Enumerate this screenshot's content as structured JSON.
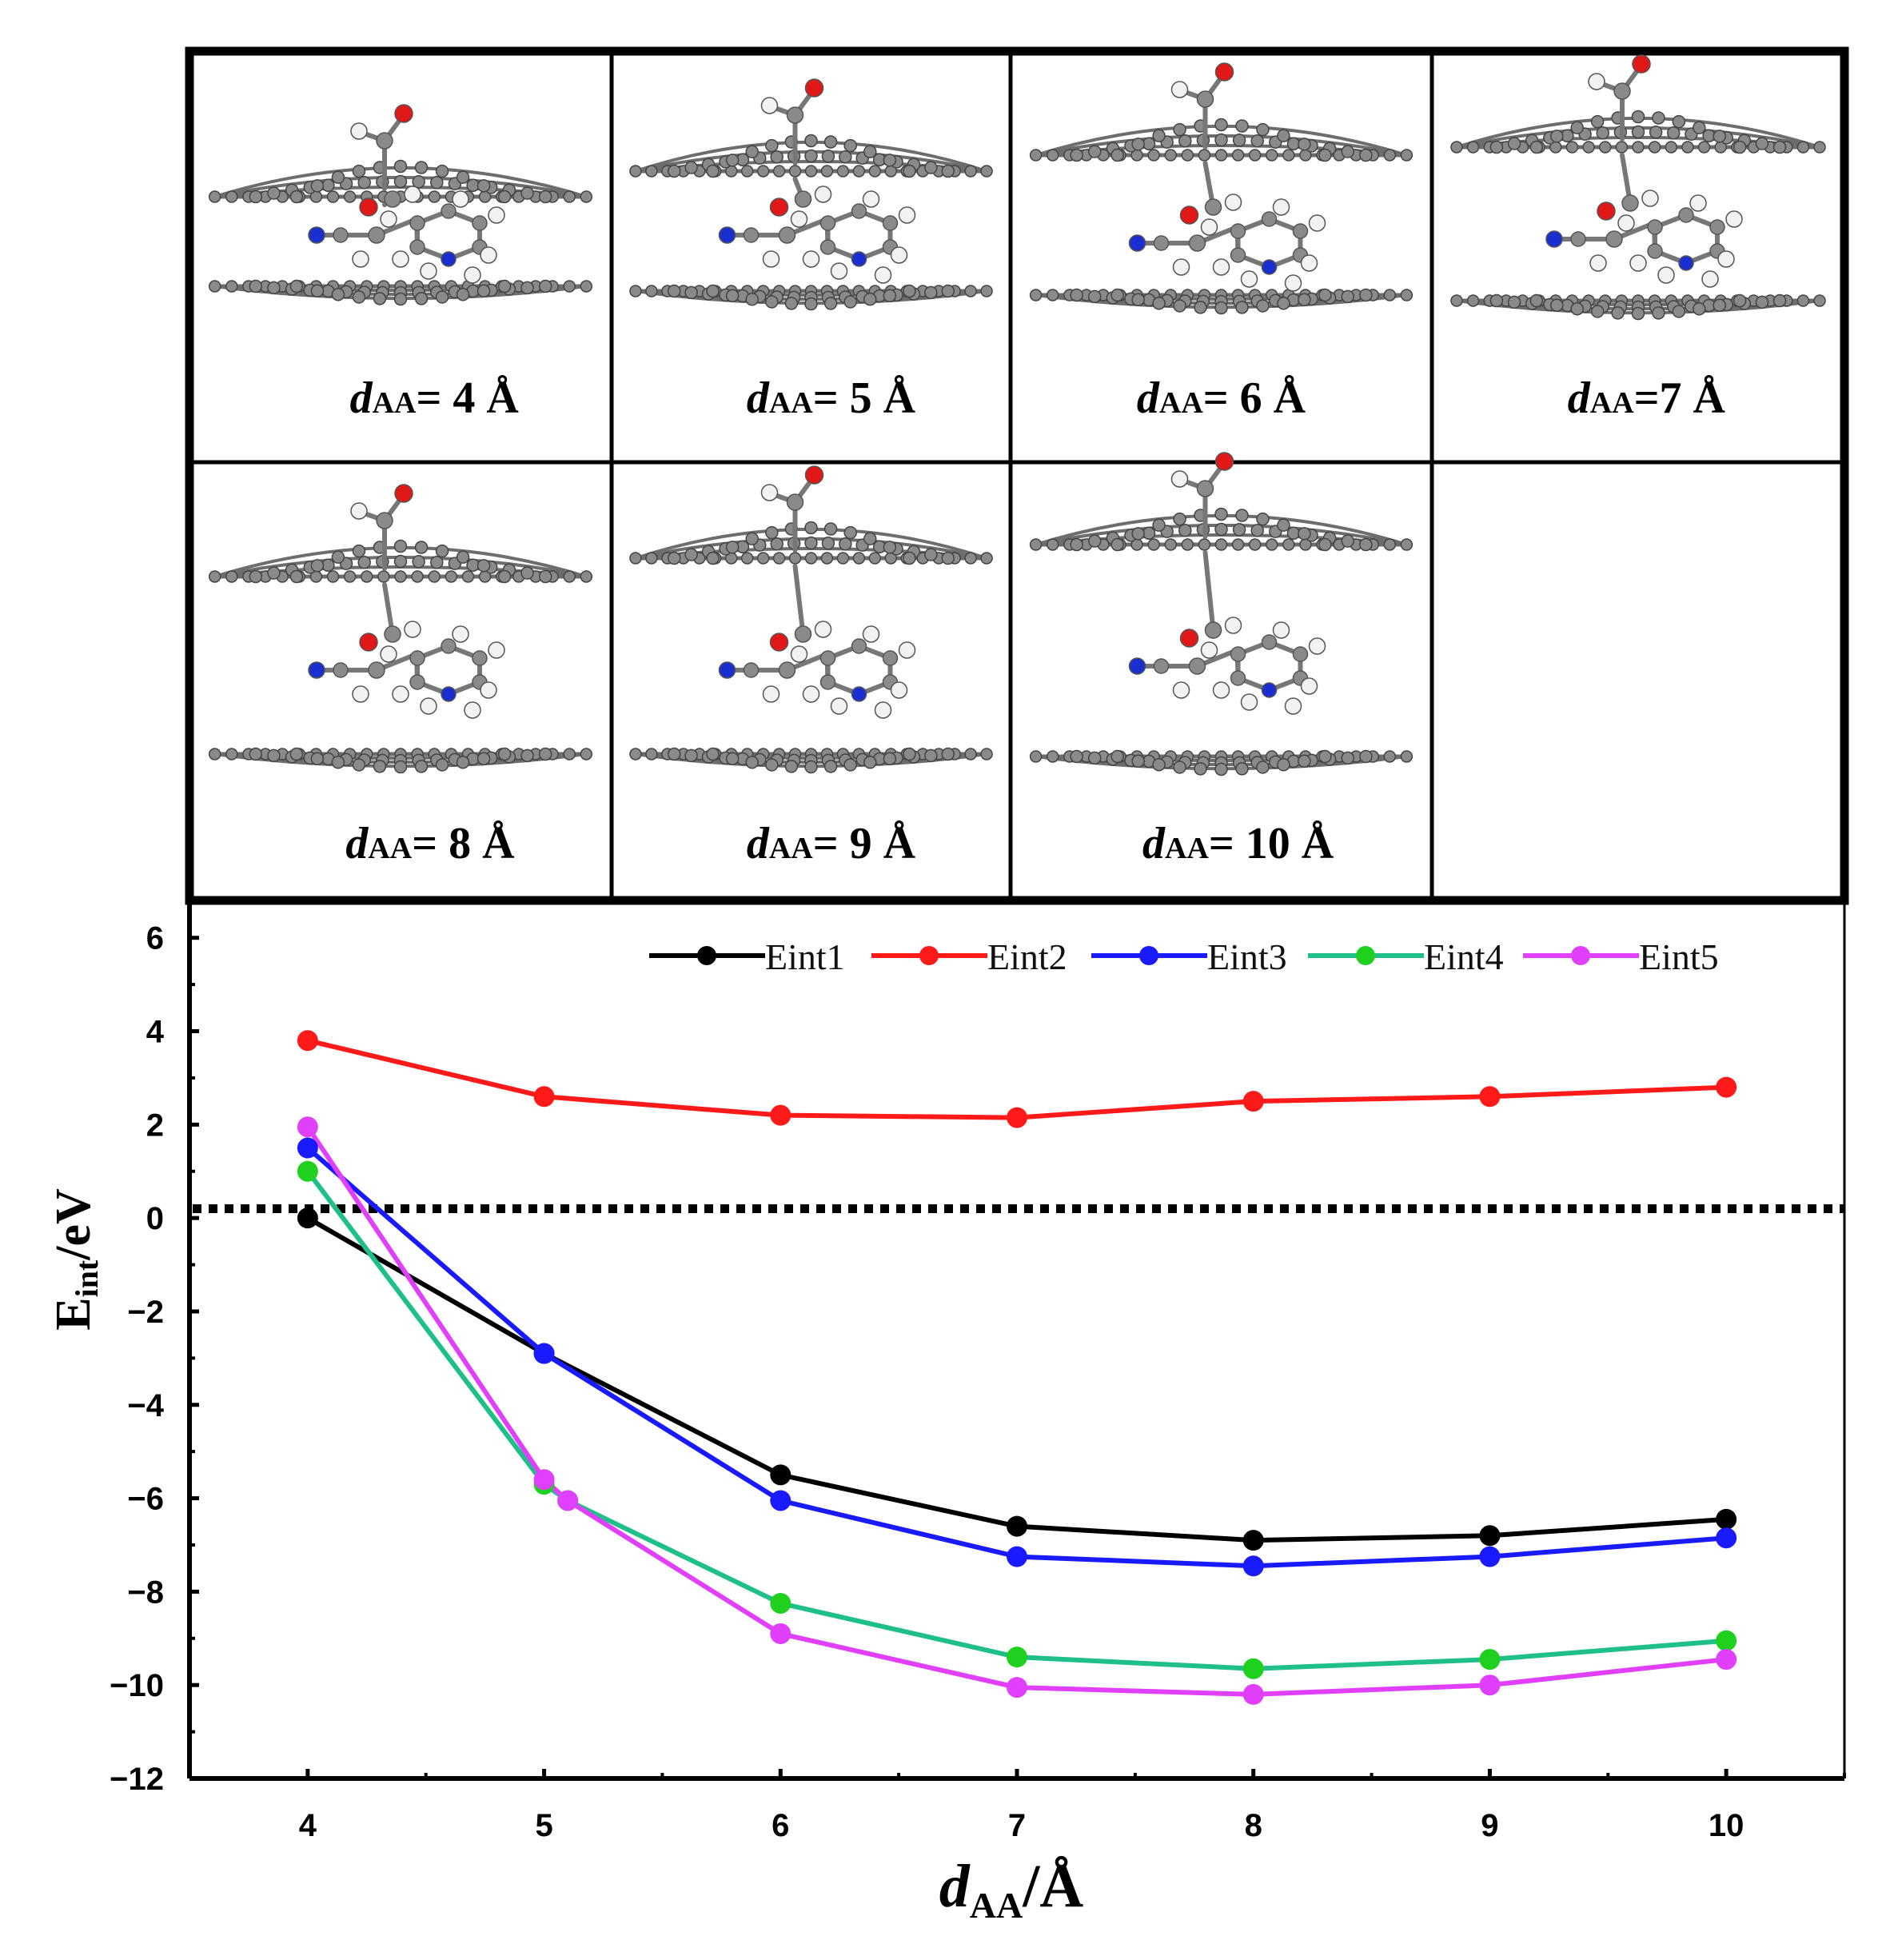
{
  "panels": [
    {
      "prefix": "d",
      "sub": "AA",
      "text": "= 4 Å"
    },
    {
      "prefix": "d",
      "sub": "AA",
      "text": "= 5 Å"
    },
    {
      "prefix": "d",
      "sub": "AA",
      "text": "= 6 Å"
    },
    {
      "prefix": "d",
      "sub": "AA",
      "text": "=7 Å"
    },
    {
      "prefix": "d",
      "sub": "AA",
      "text": "= 8 Å"
    },
    {
      "prefix": "d",
      "sub": "AA",
      "text": "= 9 Å"
    },
    {
      "prefix": "d",
      "sub": "AA",
      "text": "= 10 Å"
    }
  ],
  "colors": {
    "carbon": "#8a8a8a",
    "oxygen": "#e01818",
    "nitrogen": "#1a2fd0",
    "hydrogen": "#f2f2f2"
  },
  "chart_data": {
    "type": "line",
    "x": [
      4,
      5,
      6,
      7,
      8,
      9,
      10
    ],
    "series": [
      {
        "name": "Eint1",
        "color": "#000000",
        "values": [
          0.0,
          -2.9,
          -5.5,
          -6.6,
          -6.9,
          -6.8,
          -6.45
        ]
      },
      {
        "name": "Eint2",
        "color": "#ff1a1a",
        "values": [
          3.8,
          2.6,
          2.2,
          2.15,
          2.5,
          2.6,
          2.8
        ]
      },
      {
        "name": "Eint3",
        "color": "#1a1aff",
        "values": [
          1.5,
          -2.9,
          -6.05,
          -7.25,
          -7.45,
          -7.25,
          -6.85
        ]
      },
      {
        "name": "Eint4",
        "color": "#1fd01f",
        "line_color": "#1fbf8a",
        "values": [
          1.0,
          -5.7,
          -8.25,
          -9.4,
          -9.65,
          -9.45,
          -9.05
        ]
      },
      {
        "name": "Eint5",
        "color": "#e040fb",
        "values": [
          1.95,
          -5.6,
          -8.9,
          -10.05,
          -10.2,
          -10.0,
          -9.45
        ]
      }
    ],
    "extra_points": [
      {
        "series": "Eint4",
        "x": 5.1,
        "y": -6.05
      },
      {
        "series": "Eint5",
        "x": 5.1,
        "y": -6.05
      }
    ],
    "reference_line": {
      "y": 0.2,
      "style": "dotted"
    },
    "xlim": [
      3.5,
      10.5
    ],
    "ylim": [
      -12,
      6.8
    ],
    "xticks": [
      "4",
      "5",
      "6",
      "7",
      "8",
      "9",
      "10"
    ],
    "yticks": [
      "−12",
      "−10",
      "−8",
      "−6",
      "−4",
      "−2",
      "0",
      "2",
      "4",
      "6"
    ],
    "ylabel_main": "E",
    "ylabel_sub": "int",
    "ylabel_unit": "/eV",
    "xlabel_main": "d",
    "xlabel_sub": "AA",
    "xlabel_unit": "/Å",
    "legend_position": "top-right"
  }
}
